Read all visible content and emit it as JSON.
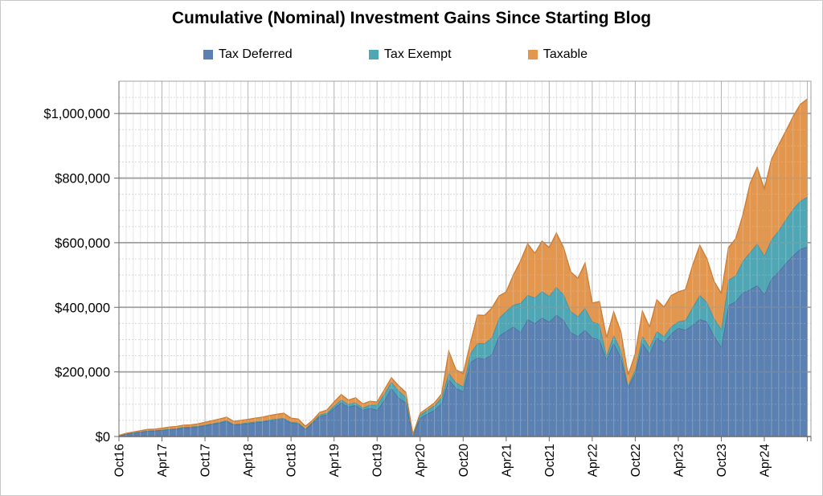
{
  "chart": {
    "title": "Cumulative (Nominal) Investment Gains Since Starting Blog"
  },
  "chart_data": {
    "type": "area",
    "stacked": true,
    "title": "Cumulative (Nominal) Investment Gains Since Starting Blog",
    "x_unit": "month",
    "x_start": "Oct 2016",
    "x_end": "Oct 2024",
    "points_per_series": 97,
    "x_tick_interval_months": 6,
    "x_tick_labels": [
      "Oct16",
      "Apr17",
      "Oct17",
      "Apr18",
      "Oct18",
      "Apr19",
      "Oct19",
      "Apr20",
      "Oct20",
      "Apr21",
      "Oct21",
      "Apr22",
      "Oct22",
      "Apr23",
      "Oct23",
      "Apr24"
    ],
    "y_tick_labels": [
      "$0",
      "$200,000",
      "$400,000",
      "$600,000",
      "$800,000",
      "$1,000,000"
    ],
    "ylim": [
      0,
      1100000
    ],
    "y_major_unit": 200000,
    "y_minor_unit": 50000,
    "values_unit": "USD thousands (monthly, Oct 2016 - Oct 2024)",
    "legend_position": "top",
    "series": [
      {
        "name": "Tax Deferred",
        "color": "#5b80b2",
        "edge": "#46689a",
        "values": [
          2,
          8,
          11,
          14,
          17,
          18,
          20,
          22,
          24,
          27,
          28,
          30,
          34,
          38,
          42,
          47,
          36,
          38,
          40,
          43,
          45,
          49,
          52,
          54,
          42,
          40,
          22,
          42,
          63,
          68,
          88,
          105,
          92,
          97,
          82,
          88,
          82,
          112,
          149,
          120,
          105,
          3,
          57,
          70,
          82,
          103,
          177,
          150,
          139,
          230,
          244,
          240,
          255,
          311,
          326,
          340,
          323,
          363,
          350,
          368,
          355,
          376,
          360,
          323,
          310,
          330,
          306,
          300,
          239,
          289,
          245,
          152,
          195,
          289,
          256,
          306,
          290,
          318,
          336,
          330,
          345,
          363,
          356,
          311,
          277,
          406,
          418,
          445,
          455,
          468,
          440,
          488,
          510,
          537,
          560,
          580,
          587
        ]
      },
      {
        "name": "Tax Exempt",
        "color": "#4fa6b5",
        "edge": "#3a8fa0",
        "values": [
          0.5,
          1,
          1,
          1,
          1,
          1,
          1,
          1,
          1,
          2,
          2,
          2,
          2,
          2,
          2,
          3,
          2,
          2,
          3,
          3,
          3,
          3,
          3,
          3,
          3,
          3,
          2,
          3,
          5,
          5,
          7,
          9,
          8,
          8,
          7,
          10,
          16,
          20,
          20,
          22,
          17,
          1,
          10,
          12,
          14,
          18,
          20,
          17,
          16,
          27,
          45,
          48,
          52,
          56,
          62,
          68,
          90,
          75,
          80,
          82,
          80,
          87,
          80,
          65,
          62,
          68,
          50,
          48,
          12,
          25,
          22,
          6,
          12,
          22,
          20,
          20,
          20,
          22,
          20,
          30,
          55,
          75,
          60,
          55,
          55,
          79,
          80,
          98,
          115,
          129,
          120,
          122,
          127,
          135,
          144,
          149,
          155
        ]
      },
      {
        "name": "Taxable",
        "color": "#e2964e",
        "edge": "#cc7c33",
        "values": [
          1,
          1,
          2,
          3,
          4,
          4,
          5,
          6,
          6,
          6,
          6,
          7,
          8,
          9,
          10,
          10,
          9,
          10,
          10,
          11,
          12,
          13,
          14,
          15,
          12,
          11,
          8,
          5,
          7,
          9,
          12,
          16,
          13,
          15,
          12,
          11,
          9,
          12,
          13,
          15,
          15,
          2,
          5,
          6,
          8,
          11,
          67,
          40,
          39,
          32,
          87,
          87,
          91,
          68,
          60,
          92,
          130,
          159,
          137,
          155,
          150,
          167,
          145,
          122,
          118,
          139,
          57,
          70,
          55,
          72,
          56,
          32,
          49,
          77,
          63,
          97,
          91,
          96,
          92,
          95,
          130,
          154,
          134,
          114,
          111,
          100,
          114,
          142,
          213,
          236,
          206,
          248,
          266,
          274,
          286,
          299,
          303
        ]
      }
    ],
    "grid": {
      "major_h_color": "#9f9f9f",
      "major_v_color": "#b4b4b4",
      "minor_h_color": "#d8d8d8",
      "minor_v_color": "#e6e6e6",
      "axis_color": "#6b6b6b",
      "border_color": "#a0a0a0"
    }
  }
}
